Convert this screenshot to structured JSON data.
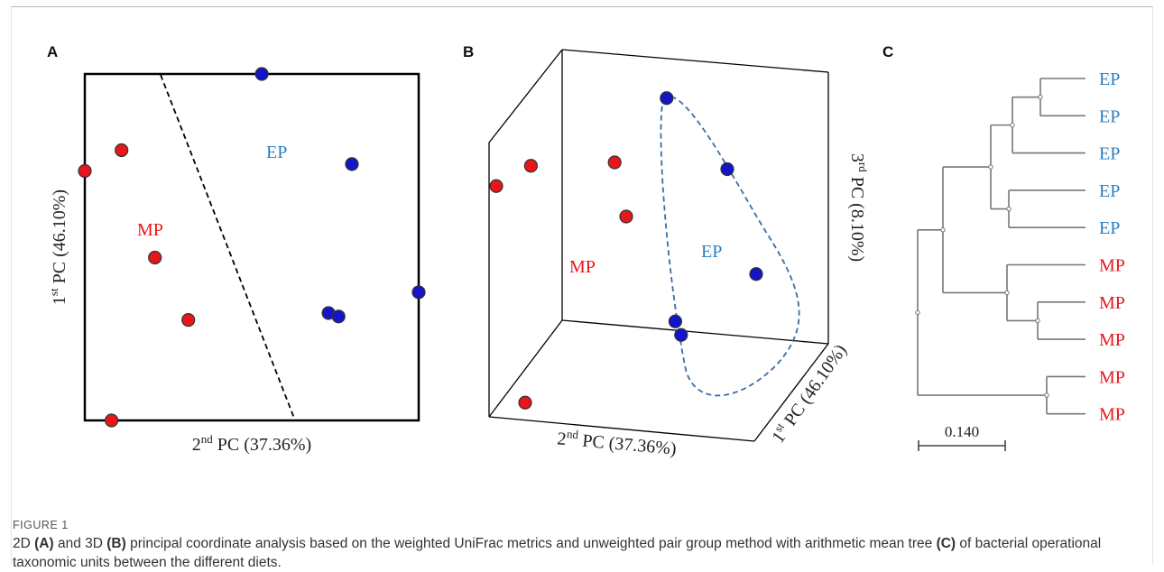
{
  "figure": {
    "panels": {
      "a": {
        "letter": "A",
        "ylabel_sup": "st",
        "ylabel_rest": " PC (46.10%)",
        "ylabel_num": "1",
        "xlabel_num": "2",
        "xlabel_sup": "nd",
        "xlabel_rest": " PC (37.36%)",
        "group_mp": "MP",
        "group_ep": "EP"
      },
      "b": {
        "letter": "B",
        "xlabel_num": "2",
        "xlabel_sup": "nd",
        "xlabel_rest": " PC (37.36%)",
        "zlabel_num": "3",
        "zlabel_sup": "rd",
        "zlabel_rest": " PC (8.10%)",
        "ylabel_num": "1",
        "ylabel_sup": "st",
        "ylabel_rest": " PC (46.10%)",
        "group_mp": "MP",
        "group_ep": "EP"
      },
      "c": {
        "letter": "C",
        "scale_label": "0.140"
      }
    },
    "caption": {
      "label": "FIGURE 1",
      "text_1": "2D ",
      "text_a": "(A)",
      "text_2": " and 3D ",
      "text_b": "(B)",
      "text_3": " principal coordinate analysis based on the weighted UniFrac metrics and unweighted pair group method with arithmetic mean tree ",
      "text_c": "(C)",
      "text_4": " of bacterial operational taxonomic units between the different diets."
    }
  },
  "colors": {
    "mp": "#e8151b",
    "ep": "#1414c8",
    "ep_label": "#2a7fc0",
    "ellipse": "#3a6ea5"
  },
  "chart_data": [
    {
      "type": "scatter",
      "title": "",
      "xlabel": "2nd PC (37.36%)",
      "ylabel": "1st PC (46.10%)",
      "grid": false,
      "series": [
        {
          "name": "MP",
          "points": [
            [
              0.0,
              0.72
            ],
            [
              0.11,
              0.78
            ],
            [
              0.21,
              0.47
            ],
            [
              0.31,
              0.29
            ],
            [
              0.08,
              0.0
            ]
          ]
        },
        {
          "name": "EP",
          "points": [
            [
              0.53,
              1.0
            ],
            [
              0.8,
              0.74
            ],
            [
              0.73,
              0.31
            ],
            [
              0.76,
              0.3
            ],
            [
              1.0,
              0.37
            ]
          ]
        }
      ]
    },
    {
      "type": "scatter",
      "title": "",
      "xlabel": "2nd PC (37.36%)",
      "ylabel": "1st PC (46.10%)",
      "zlabel": "3rd PC (8.10%)",
      "series": [
        {
          "name": "MP",
          "points": [
            [
              0.0,
              0.69
            ],
            [
              0.12,
              0.75
            ],
            [
              0.41,
              0.76
            ],
            [
              0.45,
              0.6
            ],
            [
              0.1,
              0.05
            ]
          ]
        },
        {
          "name": "EP",
          "points": [
            [
              0.59,
              0.95
            ],
            [
              0.8,
              0.74
            ],
            [
              0.9,
              0.43
            ],
            [
              0.62,
              0.29
            ],
            [
              0.64,
              0.25
            ]
          ]
        }
      ]
    },
    {
      "type": "dendrogram",
      "scale_bar": 0.14,
      "leaves": [
        {
          "label": "EP",
          "group": "EP"
        },
        {
          "label": "EP",
          "group": "EP"
        },
        {
          "label": "EP",
          "group": "EP"
        },
        {
          "label": "EP",
          "group": "EP"
        },
        {
          "label": "EP",
          "group": "EP"
        },
        {
          "label": "MP",
          "group": "MP"
        },
        {
          "label": "MP",
          "group": "MP"
        },
        {
          "label": "MP",
          "group": "MP"
        },
        {
          "label": "MP",
          "group": "MP"
        },
        {
          "label": "MP",
          "group": "MP"
        }
      ]
    }
  ]
}
